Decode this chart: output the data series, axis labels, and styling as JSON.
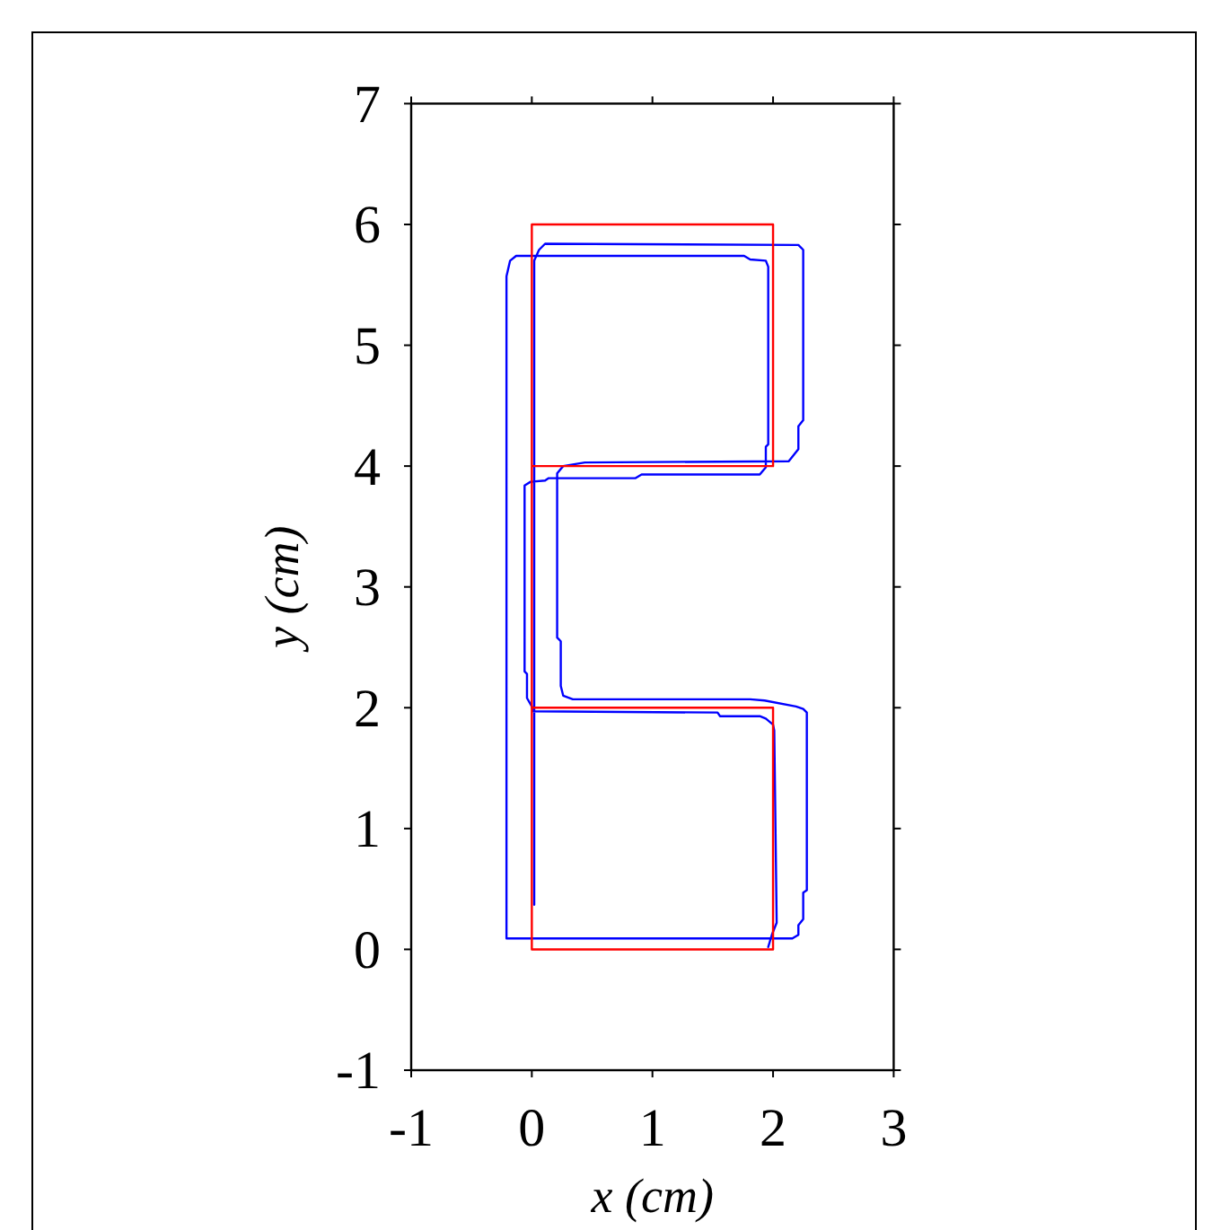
{
  "chart_data": {
    "type": "line",
    "xlabel": "x (cm)",
    "ylabel": "y (cm)",
    "xlim": [
      -1,
      3
    ],
    "ylim": [
      -1,
      7
    ],
    "xticks": [
      -1,
      0,
      1,
      2,
      3
    ],
    "yticks": [
      -1,
      0,
      1,
      2,
      3,
      4,
      5,
      6,
      7
    ],
    "series": [
      {
        "color": "#0000ff",
        "x": [
          0.02,
          0.02,
          0.06,
          0.11,
          2.21,
          2.25,
          2.25,
          2.21,
          2.21,
          2.13,
          0.44,
          0.26,
          0.21,
          0.21,
          0.24,
          0.24,
          0.26,
          0.34,
          1.81,
          1.93,
          2.19,
          2.25,
          2.28,
          2.28,
          2.25,
          2.25,
          2.21,
          2.21,
          2.16,
          -0.21,
          -0.21,
          -0.18,
          -0.13,
          1.76,
          1.81,
          1.94,
          1.96,
          1.96,
          1.94,
          1.94,
          1.89,
          0.91,
          0.86,
          0.14,
          0.11,
          -0.01,
          -0.06,
          -0.06,
          -0.04,
          -0.04,
          0.0,
          0.01,
          1.54,
          1.56,
          1.89,
          1.94,
          2.0,
          2.01,
          2.03,
          1.99,
          1.96
        ],
        "values": [
          0.37,
          5.7,
          5.79,
          5.84,
          5.83,
          5.79,
          4.38,
          4.33,
          4.14,
          4.04,
          4.03,
          4.0,
          3.94,
          2.58,
          2.55,
          2.18,
          2.1,
          2.07,
          2.07,
          2.06,
          2.01,
          1.99,
          1.96,
          0.49,
          0.47,
          0.25,
          0.2,
          0.12,
          0.09,
          0.09,
          5.57,
          5.7,
          5.74,
          5.74,
          5.71,
          5.7,
          5.65,
          4.18,
          4.16,
          3.99,
          3.93,
          3.93,
          3.9,
          3.9,
          3.88,
          3.87,
          3.84,
          2.3,
          2.28,
          2.08,
          2.01,
          1.97,
          1.96,
          1.93,
          1.93,
          1.91,
          1.86,
          1.81,
          0.22,
          0.12,
          0.02
        ]
      },
      {
        "color": "#ff0000",
        "x": [
          0,
          2,
          2,
          0,
          0,
          2,
          2,
          0
        ],
        "values": [
          4,
          4,
          6,
          6,
          0,
          0,
          2,
          2
        ]
      }
    ]
  }
}
